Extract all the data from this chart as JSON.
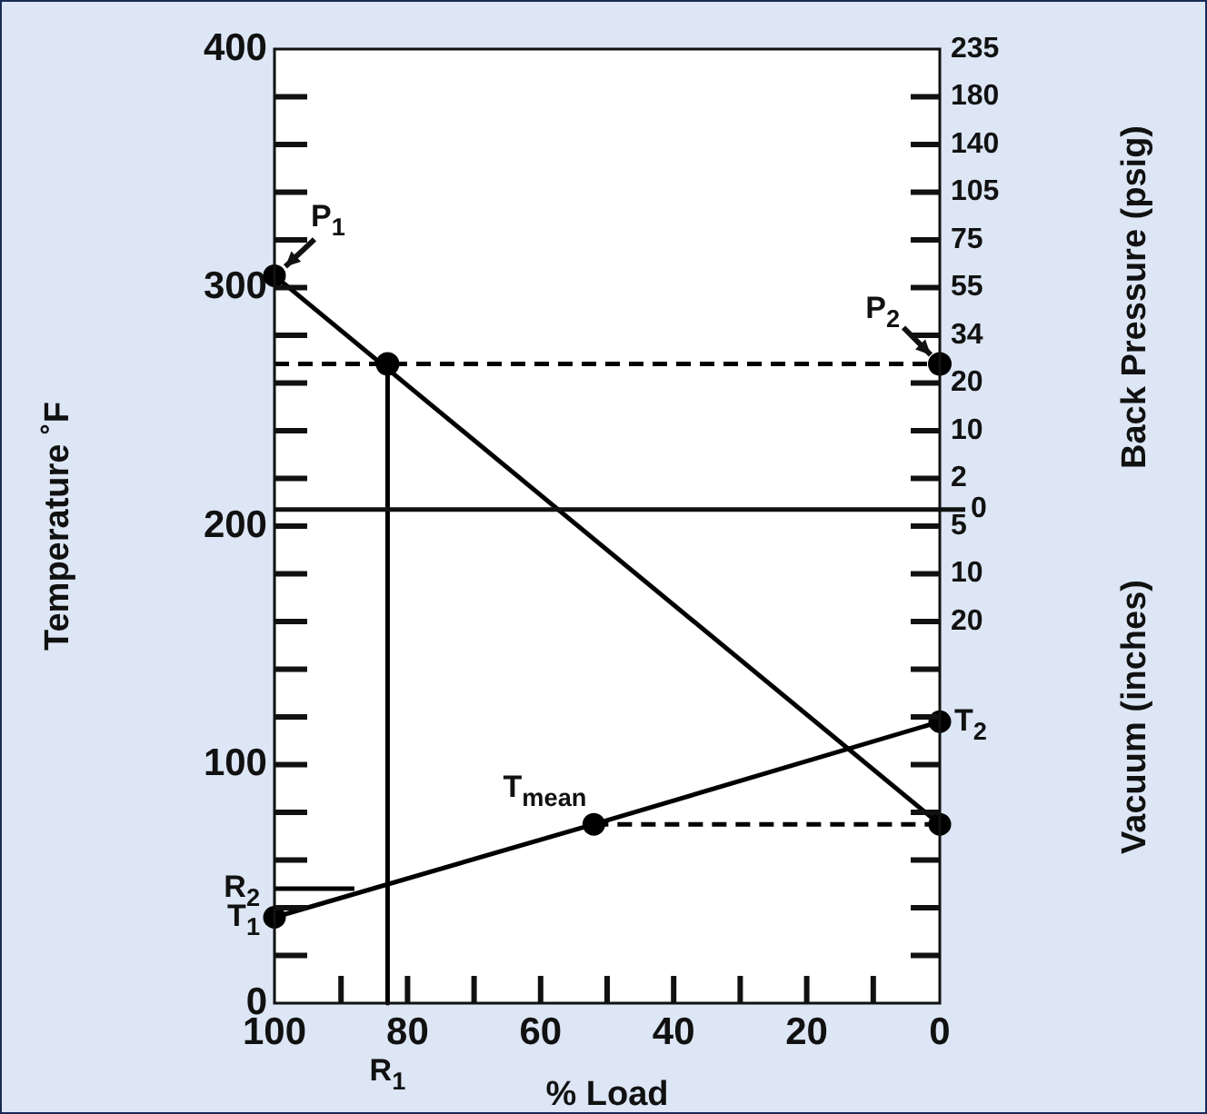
{
  "chart_data": {
    "type": "line",
    "xlabel": "% Load",
    "ylabel": "Temperature ˚F",
    "y2label": "Back Pressure (psig)",
    "annotations": [
      "Vacuum (inches)",
      {
        "text": "P$_{1}$",
        "x": 100,
        "y": 305
      },
      {
        "text": "P$_{2}$",
        "x": 0,
        "y": 268
      },
      {
        "text": "T$_{1}$",
        "x": 100,
        "y": 36
      },
      {
        "text": "T$_{2}$",
        "x": 0,
        "y": 118
      },
      {
        "text": "T$_{mean}$",
        "x": 52,
        "y": 75
      },
      {
        "text": "R$_{1}$",
        "x": 83,
        "y": 0
      },
      {
        "text": "R$_{2}$",
        "x": 100,
        "y": 48
      },
      {
        "text": "0",
        "x": 0,
        "y": 207
      }
    ],
    "xlim": [
      100,
      0
    ],
    "xticks": [
      100,
      {
        "value": 90,
        "label": null
      },
      80,
      {
        "value": 70,
        "label": null
      },
      60,
      {
        "value": 50,
        "label": null
      },
      40,
      {
        "value": 30,
        "label": null
      },
      20,
      {
        "value": 10,
        "label": null
      },
      0
    ],
    "ylim": [
      0,
      400
    ],
    "yticks": [
      0,
      {
        "value": 20,
        "label": null
      },
      {
        "value": 40,
        "label": null
      },
      {
        "value": 60,
        "label": null
      },
      {
        "value": 80,
        "label": null
      },
      100,
      {
        "value": 120,
        "label": null
      },
      {
        "value": 140,
        "label": null
      },
      {
        "value": 160,
        "label": null
      },
      {
        "value": 180,
        "label": null
      },
      200,
      {
        "value": 220,
        "label": null
      },
      {
        "value": 240,
        "label": null
      },
      {
        "value": 260,
        "label": null
      },
      {
        "value": 280,
        "label": null
      },
      300,
      {
        "value": 320,
        "label": null
      },
      {
        "value": 340,
        "label": null
      },
      {
        "value": 360,
        "label": null
      },
      {
        "value": 380,
        "label": null
      },
      400
    ],
    "y2_categories": [
      "235",
      "180",
      "140",
      "105",
      "75",
      "55",
      "34",
      "20",
      "10",
      "2",
      "5",
      "10",
      "20",
      null,
      null,
      null,
      null,
      null,
      null,
      null,
      null
    ],
    "ref_lines": [
      {
        "axis": "y",
        "value": 207
      }
    ],
    "legend": false,
    "grid": false,
    "marker": "none",
    "line_style": "solid",
    "series": [
      {
        "type": "line",
        "color": "#000000",
        "x": [
          100,
          0
        ],
        "values": [
          305,
          75
        ],
        "marker": "circle"
      },
      {
        "type": "line",
        "color": "#000000",
        "x": [
          100,
          52,
          0
        ],
        "values": [
          36,
          75,
          118
        ],
        "marker": "circle"
      },
      {
        "type": "line",
        "color": "#000000",
        "x": [
          100,
          0
        ],
        "values": [
          268,
          268
        ],
        "line_style": "dashed"
      },
      {
        "type": "line",
        "color": "#000000",
        "x": [
          52,
          0
        ],
        "values": [
          75,
          75
        ],
        "line_style": "dashed"
      },
      {
        "type": "line",
        "color": "#000000",
        "x": [
          83,
          83
        ],
        "values": [
          268,
          0
        ]
      },
      {
        "type": "line",
        "color": "#000000",
        "x": [
          100,
          88
        ],
        "values": [
          48,
          48
        ]
      },
      {
        "type": "scatter",
        "color": "#000000",
        "x": [
          83,
          0
        ],
        "values": [
          268,
          268
        ],
        "marker": "circle"
      }
    ]
  }
}
